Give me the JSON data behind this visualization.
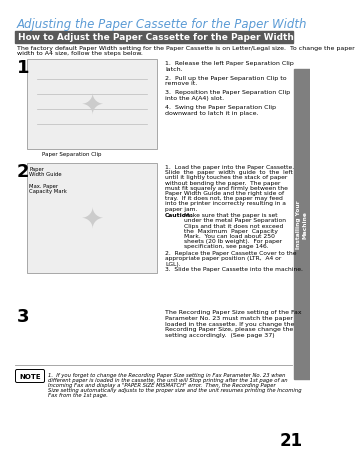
{
  "page_title": "Adjusting the Paper Cassette for the Paper Width",
  "page_title_color": "#5b9bd5",
  "section_header": "How to Adjust the Paper Cassette for the Paper Width",
  "section_header_bg": "#595959",
  "section_header_text_color": "#ffffff",
  "intro_line1": "The factory default Paper Width setting for the Paper Cassette is on Letter/Legal size.  To change the paper",
  "intro_line2": "width to A4 size, follow the steps below.",
  "step1_num": "1",
  "step1_img_label": "Paper Separation Clip",
  "step1_instructions": [
    [
      "1.  Release the left Paper Separation Clip",
      "latch."
    ],
    [
      "2.  Pull up the Paper Separation Clip to",
      "remove it."
    ],
    [
      "3.  Reposition the Paper Separation Clip",
      "into the A(A4) slot."
    ],
    [
      "4.  Swing the Paper Separation Clip",
      "downward to latch it in place."
    ]
  ],
  "step2_num": "2",
  "step2_label1": "Paper",
  "step2_label2": "Width Guide",
  "step2_label3": "Max. Paper",
  "step2_label4": "Capacity Mark",
  "step2_instructions_p1": [
    "1.  Load the paper into the Paper Cassette.",
    "Slide  the  paper  width  guide  to  the  left",
    "until it lightly touches the stack of paper",
    "without bending the paper.  The paper",
    "must fit squarely and firmly between the",
    "Paper Width Guide and the right side of",
    "tray.  If it does not, the paper may feed",
    "into the printer incorrectly resulting in a",
    "paper jam."
  ],
  "step2_caution_label": "Caution:",
  "step2_caution_lines": [
    "Make sure that the paper is set",
    "under the metal Paper Separation",
    "Clips and that it does not exceed",
    "the  Maximum  Paper  Capacity",
    "Mark.  You can load about 250",
    "sheets (20 lb weight).  For paper",
    "specification, see page 146."
  ],
  "step2_instructions_p2": [
    "2.  Replace the Paper Cassette Cover to the",
    "appropriate paper position (LTR,  A4 or",
    "LGL).",
    "3.  Slide the Paper Cassette into the machine."
  ],
  "step3_num": "3",
  "step3_lines": [
    "The Recording Paper Size setting of the Fax",
    "Parameter No. 23 must match the paper",
    "loaded in the cassette. If you change the",
    "Recording Paper Size, please change the",
    "setting accordingly.  (See page 37)"
  ],
  "note_lines": [
    "1.  If you forget to change the Recording Paper Size setting in Fax Parameter No. 23 when",
    "different paper is loaded in the cassette, the unit will Stop printing after the 1st page of an",
    "Incoming Fax and display a \"PAPER SIZE MISMATCH\" error.  Then, the Recording Paper",
    "Size setting automatically adjusts to the proper size and the unit resumes printing the Incoming",
    "Fax from the 1st page."
  ],
  "page_number": "21",
  "sidebar_text": "Installing Your\nMachine",
  "sidebar_bg": "#7f7f7f",
  "bg_color": "#ffffff",
  "text_color": "#000000"
}
